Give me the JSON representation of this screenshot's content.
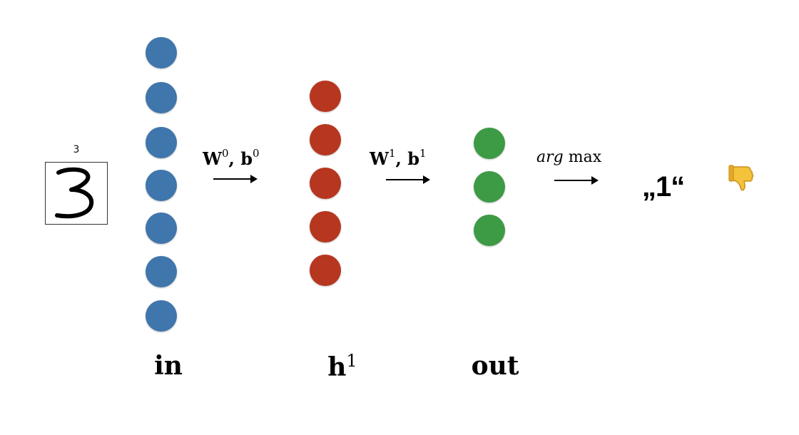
{
  "input": {
    "digit_label": "3"
  },
  "layers": {
    "in": {
      "label": "in",
      "node_count": 7,
      "color": "#3f76ab"
    },
    "h": {
      "label": "h",
      "superscript": "1",
      "node_count": 5,
      "color": "#b7361f"
    },
    "out": {
      "label": "out",
      "node_count": 3,
      "color": "#3d9a45"
    }
  },
  "connections": {
    "w0": {
      "weight": "W",
      "weight_sup": "0",
      "sep": ", ",
      "bias": "b",
      "bias_sup": "0"
    },
    "w1": {
      "weight": "W",
      "weight_sup": "1",
      "sep": ", ",
      "bias": "b",
      "bias_sup": "1"
    },
    "argmax": {
      "prefix": "arg",
      "op": " max"
    }
  },
  "prediction": {
    "text": "„1“",
    "verdict_icon": "thumbs-down-icon"
  }
}
